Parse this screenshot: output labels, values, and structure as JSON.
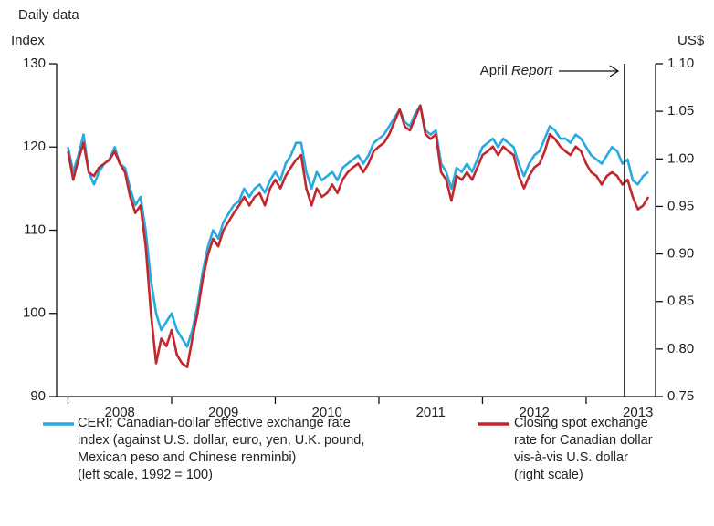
{
  "chart_data": {
    "type": "line",
    "title": "Daily data",
    "y_axis_label": "Index",
    "y2_axis_label": "US$",
    "annotation": {
      "label": "April",
      "label_italic": "Report",
      "x": 2013.37
    },
    "xlim": [
      2007.89,
      2013.67
    ],
    "xticks": [
      {
        "value": 2008.5,
        "label": "2008"
      },
      {
        "value": 2009.5,
        "label": "2009"
      },
      {
        "value": 2010.5,
        "label": "2010"
      },
      {
        "value": 2011.5,
        "label": "2011"
      },
      {
        "value": 2012.5,
        "label": "2012"
      },
      {
        "value": 2013.5,
        "label": "2013"
      }
    ],
    "ylim": [
      90,
      130
    ],
    "yticks": [
      90,
      100,
      110,
      120,
      130
    ],
    "y2lim": [
      0.75,
      1.1
    ],
    "y2ticks": [
      0.75,
      {
        "value": 0.8,
        "label": "0.80"
      },
      0.85,
      {
        "value": 0.9,
        "label": "0.90"
      },
      0.95,
      {
        "value": 1.0,
        "label": "1.00"
      },
      1.05,
      {
        "value": 1.1,
        "label": "1.10"
      }
    ],
    "x": [
      2008,
      2008.05,
      2008.1,
      2008.15,
      2008.2,
      2008.25,
      2008.3,
      2008.35,
      2008.4,
      2008.45,
      2008.5,
      2008.55,
      2008.6,
      2008.65,
      2008.7,
      2008.75,
      2008.8,
      2008.85,
      2008.9,
      2008.95,
      2009,
      2009.05,
      2009.1,
      2009.15,
      2009.2,
      2009.25,
      2009.3,
      2009.35,
      2009.4,
      2009.45,
      2009.5,
      2009.55,
      2009.6,
      2009.65,
      2009.7,
      2009.75,
      2009.8,
      2009.85,
      2009.9,
      2009.95,
      2010,
      2010.05,
      2010.1,
      2010.15,
      2010.2,
      2010.25,
      2010.3,
      2010.35,
      2010.4,
      2010.45,
      2010.5,
      2010.55,
      2010.6,
      2010.65,
      2010.7,
      2010.75,
      2010.8,
      2010.85,
      2010.9,
      2010.95,
      2011,
      2011.05,
      2011.1,
      2011.15,
      2011.2,
      2011.25,
      2011.3,
      2011.35,
      2011.4,
      2011.45,
      2011.5,
      2011.55,
      2011.6,
      2011.65,
      2011.7,
      2011.75,
      2011.8,
      2011.85,
      2011.9,
      2011.95,
      2012,
      2012.05,
      2012.1,
      2012.15,
      2012.2,
      2012.25,
      2012.3,
      2012.35,
      2012.4,
      2012.45,
      2012.5,
      2012.55,
      2012.6,
      2012.65,
      2012.7,
      2012.75,
      2012.8,
      2012.85,
      2012.9,
      2012.95,
      2013,
      2013.05,
      2013.1,
      2013.15,
      2013.2,
      2013.25,
      2013.3,
      2013.35,
      2013.4,
      2013.45,
      2013.5,
      2013.55,
      2013.6
    ],
    "series": [
      {
        "name": "CERI: Canadian-dollar effective exchange rate\nindex (against U.S. dollar, euro, yen, U.K. pound,\nMexican peso and Chinese renminbi)\n(left scale, 1992 = 100)",
        "color": "#27a9e1",
        "axis": "y",
        "values": [
          120,
          117,
          119,
          121.5,
          117,
          115.5,
          117,
          118,
          118.5,
          120,
          118,
          117.5,
          115,
          113,
          114,
          110,
          104,
          100,
          98,
          99,
          100,
          98,
          97,
          96,
          98,
          101,
          105,
          108,
          110,
          109,
          111,
          112,
          113,
          113.5,
          115,
          114,
          115,
          115.5,
          114.5,
          116,
          117,
          116,
          118,
          119,
          120.5,
          120.5,
          117,
          115,
          117,
          116,
          116.5,
          117,
          116,
          117.5,
          118,
          118.5,
          119,
          118,
          119,
          120.5,
          121,
          121.5,
          122.5,
          123.5,
          124.5,
          123,
          122.5,
          124,
          125,
          122,
          121.5,
          122,
          118,
          117,
          115,
          117.5,
          117,
          118,
          117,
          118.5,
          120,
          120.5,
          121,
          120,
          121,
          120.5,
          120,
          118,
          116.5,
          118,
          119,
          119.5,
          121,
          122.5,
          122,
          121,
          121,
          120.5,
          121.5,
          121,
          120,
          119,
          118.5,
          118,
          119,
          120,
          119.5,
          118,
          118.5,
          116,
          115.5,
          116.5,
          117
        ]
      },
      {
        "name": "Closing spot exchange\nrate for Canadian dollar\nvis-à-vis U.S. dollar\n(right scale)",
        "color": "#c1272d",
        "axis": "y2",
        "values": [
          1.008,
          0.978,
          0.999,
          1.017,
          0.986,
          0.982,
          0.991,
          0.995,
          0.999,
          1.008,
          0.995,
          0.986,
          0.96,
          0.943,
          0.951,
          0.908,
          0.838,
          0.785,
          0.811,
          0.803,
          0.82,
          0.794,
          0.785,
          0.781,
          0.811,
          0.838,
          0.873,
          0.899,
          0.916,
          0.908,
          0.925,
          0.934,
          0.943,
          0.951,
          0.96,
          0.951,
          0.96,
          0.964,
          0.951,
          0.969,
          0.978,
          0.969,
          0.982,
          0.991,
          0.999,
          1.004,
          0.969,
          0.951,
          0.969,
          0.96,
          0.964,
          0.973,
          0.964,
          0.978,
          0.986,
          0.991,
          0.995,
          0.986,
          0.995,
          1.008,
          1.013,
          1.017,
          1.026,
          1.039,
          1.052,
          1.034,
          1.03,
          1.043,
          1.056,
          1.026,
          1.021,
          1.026,
          0.986,
          0.978,
          0.956,
          0.982,
          0.978,
          0.986,
          0.978,
          0.991,
          1.004,
          1.008,
          1.013,
          1.004,
          1.013,
          1.008,
          1.004,
          0.982,
          0.969,
          0.982,
          0.991,
          0.995,
          1.008,
          1.026,
          1.021,
          1.013,
          1.008,
          1.004,
          1.013,
          1.008,
          0.995,
          0.986,
          0.982,
          0.973,
          0.982,
          0.986,
          0.982,
          0.973,
          0.978,
          0.96,
          0.947,
          0.951,
          0.96
        ]
      }
    ]
  }
}
